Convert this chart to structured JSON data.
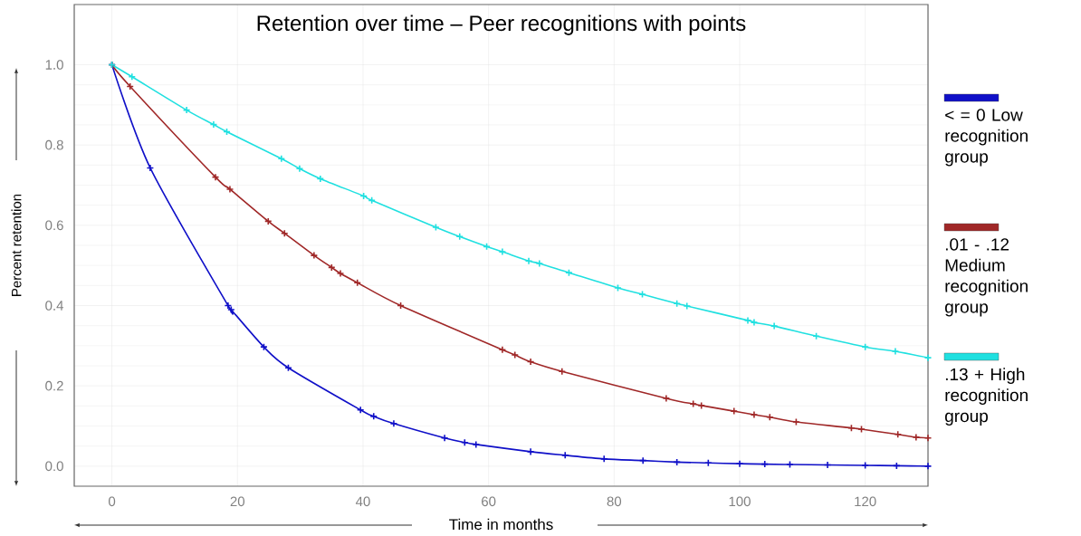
{
  "chart_data": {
    "type": "line",
    "title": "Retention over time – Peer recognitions with points",
    "xlabel": "Time in months",
    "ylabel": "Percent retention",
    "xlim": [
      -6,
      130
    ],
    "ylim": [
      -0.05,
      1.15
    ],
    "xticks": [
      0,
      20,
      40,
      60,
      80,
      100,
      120
    ],
    "yticks": [
      {
        "value": 0,
        "label": "0.0"
      },
      0.2,
      0.4,
      0.6,
      0.8,
      {
        "value": 1,
        "label": "1.0"
      }
    ],
    "grid": true,
    "legend": "right",
    "marker": "cross",
    "line_style": "solid",
    "series": [
      {
        "name": "< = 0 Low recognition group",
        "color": "#1010c8",
        "x": [
          0,
          6.1,
          18.5,
          19,
          24.2,
          28.1,
          39.6,
          41.7,
          44.9,
          53,
          56.2,
          58,
          66.7,
          72.2,
          78.4,
          84.6,
          90,
          95,
          100,
          104,
          108,
          114,
          120,
          125,
          130
        ],
        "values": [
          1.0,
          0.743,
          0.4,
          0.39,
          0.297,
          0.245,
          0.14,
          0.124,
          0.106,
          0.07,
          0.059,
          0.054,
          0.036,
          0.027,
          0.018,
          0.014,
          0.01,
          0.008,
          0.006,
          0.005,
          0.004,
          0.003,
          0.002,
          0.001,
          0.0
        ]
      },
      {
        "name": ".01 - .12 Medium recognition group",
        "color": "#a02828",
        "x": [
          0,
          2.9,
          16.5,
          18.8,
          24.9,
          27.5,
          32.2,
          35,
          36.4,
          39.1,
          46,
          62.2,
          64.2,
          66.7,
          71.7,
          88.3,
          92.6,
          93.9,
          99.1,
          102.3,
          104.8,
          109,
          117.8,
          119.4,
          125.2,
          128.1,
          130
        ],
        "values": [
          1.0,
          0.946,
          0.72,
          0.69,
          0.61,
          0.58,
          0.525,
          0.495,
          0.48,
          0.457,
          0.4,
          0.29,
          0.277,
          0.26,
          0.236,
          0.169,
          0.155,
          0.151,
          0.137,
          0.128,
          0.122,
          0.11,
          0.095,
          0.092,
          0.079,
          0.072,
          0.07
        ]
      },
      {
        "name": ".13 + High recognition group",
        "color": "#20e0e0",
        "x": [
          0,
          3.2,
          11.9,
          16.2,
          18.3,
          27,
          29.9,
          33.2,
          40.1,
          41.4,
          51.6,
          55.4,
          59.7,
          62.2,
          66.4,
          68.1,
          72.8,
          80.6,
          84.5,
          90,
          91.6,
          101.3,
          102.3,
          105.5,
          112.2,
          120,
          124.8,
          130
        ],
        "values": [
          1.0,
          0.97,
          0.887,
          0.851,
          0.833,
          0.766,
          0.741,
          0.716,
          0.673,
          0.662,
          0.595,
          0.572,
          0.547,
          0.534,
          0.511,
          0.505,
          0.482,
          0.444,
          0.428,
          0.405,
          0.399,
          0.363,
          0.358,
          0.349,
          0.324,
          0.297,
          0.286,
          0.27
        ]
      }
    ]
  }
}
